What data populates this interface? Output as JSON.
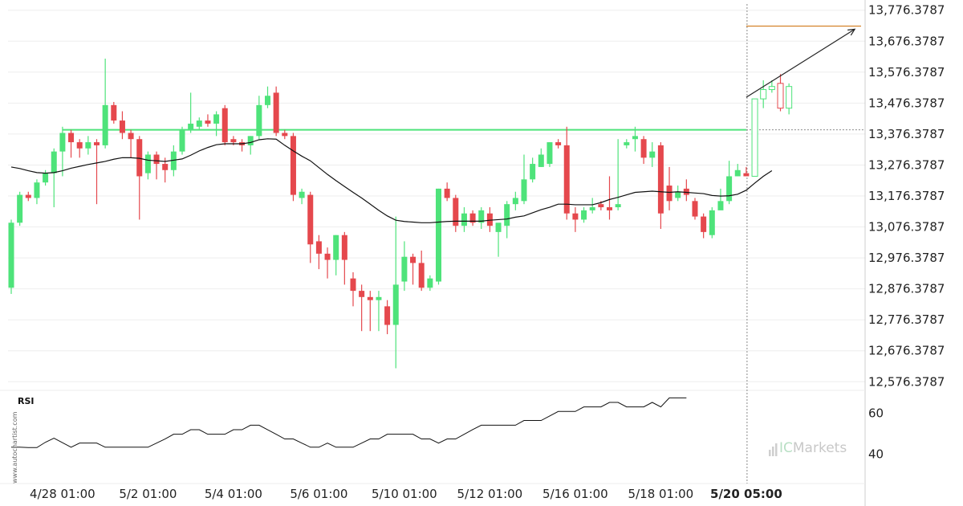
{
  "watermark": "www.autochartist.com",
  "brand": {
    "prefix": "IC",
    "suffix": "Markets"
  },
  "colors": {
    "up": "#4ee37a",
    "down": "#e5484d",
    "sma": "#111111",
    "level": "#4ee37a",
    "target": "#d4822a",
    "grid": "#eeeeee",
    "divider": "#cccccc"
  },
  "chart_data": [
    {
      "type": "candlestick",
      "title": "",
      "y_ticks": [
        "13,776.3787",
        "13,676.3787",
        "13,576.3787",
        "13,476.3787",
        "13,376.3787",
        "13,276.3787",
        "13,176.3787",
        "13,076.3787",
        "12,976.3787",
        "12,876.3787",
        "12,776.3787",
        "12,676.3787",
        "12,576.3787"
      ],
      "ylim": [
        12556.3787,
        13796.3787
      ],
      "x_ticks": [
        {
          "index": 6,
          "label": "4/28 01:00"
        },
        {
          "index": 16,
          "label": "5/2 01:00"
        },
        {
          "index": 26,
          "label": "5/4 01:00"
        },
        {
          "index": 36,
          "label": "5/6 01:00"
        },
        {
          "index": 46,
          "label": "5/10 01:00"
        },
        {
          "index": 56,
          "label": "5/12 01:00"
        },
        {
          "index": 66,
          "label": "5/16 01:00"
        },
        {
          "index": 76,
          "label": "5/18 01:00"
        },
        {
          "index": 86,
          "label": "5/20 05:00",
          "bold": true
        }
      ],
      "breakout_index": 86,
      "candles": [
        [
          12880,
          13100,
          13090,
          12860
        ],
        [
          13090,
          13190,
          13180,
          13080
        ],
        [
          13180,
          13190,
          13170,
          13160
        ],
        [
          13170,
          13230,
          13220,
          13150
        ],
        [
          13220,
          13260,
          13250,
          13210
        ],
        [
          13250,
          13330,
          13320,
          13140
        ],
        [
          13320,
          13400,
          13380,
          13240
        ],
        [
          13380,
          13390,
          13350,
          13300
        ],
        [
          13350,
          13360,
          13330,
          13300
        ],
        [
          13330,
          13370,
          13350,
          13310
        ],
        [
          13350,
          13360,
          13340,
          13150
        ],
        [
          13340,
          13620,
          13470,
          13330
        ],
        [
          13470,
          13480,
          13420,
          13410
        ],
        [
          13420,
          13450,
          13380,
          13360
        ],
        [
          13380,
          13390,
          13360,
          13300
        ],
        [
          13360,
          13370,
          13240,
          13100
        ],
        [
          13250,
          13320,
          13310,
          13230
        ],
        [
          13310,
          13320,
          13280,
          13230
        ],
        [
          13280,
          13300,
          13260,
          13220
        ],
        [
          13260,
          13340,
          13320,
          13240
        ],
        [
          13320,
          13400,
          13390,
          13310
        ],
        [
          13390,
          13510,
          13410,
          13380
        ],
        [
          13400,
          13430,
          13420,
          13390
        ],
        [
          13420,
          13440,
          13410,
          13400
        ],
        [
          13410,
          13450,
          13440,
          13370
        ],
        [
          13460,
          13470,
          13350,
          13340
        ],
        [
          13360,
          13370,
          13350,
          13340
        ],
        [
          13350,
          13360,
          13340,
          13320
        ],
        [
          13340,
          13370,
          13370,
          13310
        ],
        [
          13370,
          13500,
          13470,
          13360
        ],
        [
          13470,
          13530,
          13500,
          13460
        ],
        [
          13510,
          13530,
          13380,
          13370
        ],
        [
          13380,
          13390,
          13370,
          13360
        ],
        [
          13370,
          13380,
          13180,
          13160
        ],
        [
          13170,
          13200,
          13190,
          13150
        ],
        [
          13180,
          13190,
          13020,
          12960
        ],
        [
          13030,
          13050,
          12990,
          12940
        ],
        [
          12990,
          13010,
          12970,
          12910
        ],
        [
          12970,
          13050,
          13050,
          12920
        ],
        [
          13050,
          13060,
          12970,
          12890
        ],
        [
          12910,
          12930,
          12870,
          12820
        ],
        [
          12870,
          12890,
          12850,
          12740
        ],
        [
          12850,
          12870,
          12840,
          12740
        ],
        [
          12840,
          12870,
          12850,
          12740
        ],
        [
          12820,
          12840,
          12760,
          12730
        ],
        [
          12760,
          13110,
          12890,
          12620
        ],
        [
          12900,
          13030,
          12980,
          12870
        ],
        [
          12980,
          12990,
          12960,
          12890
        ],
        [
          12960,
          13000,
          12880,
          12870
        ],
        [
          12880,
          12920,
          12910,
          12870
        ],
        [
          12900,
          13200,
          13200,
          12890
        ],
        [
          13200,
          13220,
          13170,
          13160
        ],
        [
          13170,
          13180,
          13080,
          13060
        ],
        [
          13080,
          13140,
          13120,
          13060
        ],
        [
          13120,
          13130,
          13090,
          13080
        ],
        [
          13090,
          13140,
          13130,
          13070
        ],
        [
          13120,
          13140,
          13080,
          13060
        ],
        [
          13060,
          13080,
          13090,
          12980
        ],
        [
          13080,
          13160,
          13150,
          13040
        ],
        [
          13150,
          13190,
          13170,
          13130
        ],
        [
          13160,
          13310,
          13230,
          13150
        ],
        [
          13230,
          13300,
          13280,
          13220
        ],
        [
          13270,
          13330,
          13310,
          13270
        ],
        [
          13280,
          13350,
          13350,
          13270
        ],
        [
          13350,
          13360,
          13340,
          13330
        ],
        [
          13340,
          13400,
          13120,
          13100
        ],
        [
          13120,
          13140,
          13100,
          13060
        ],
        [
          13100,
          13140,
          13130,
          13090
        ],
        [
          13130,
          13170,
          13140,
          13120
        ],
        [
          13150,
          13160,
          13140,
          13130
        ],
        [
          13140,
          13240,
          13130,
          13100
        ],
        [
          13140,
          13360,
          13150,
          13130
        ],
        [
          13340,
          13360,
          13350,
          13330
        ],
        [
          13360,
          13400,
          13370,
          13320
        ],
        [
          13360,
          13370,
          13300,
          13280
        ],
        [
          13300,
          13350,
          13320,
          13270
        ],
        [
          13340,
          13350,
          13120,
          13070
        ],
        [
          13210,
          13270,
          13160,
          13130
        ],
        [
          13170,
          13210,
          13190,
          13160
        ],
        [
          13200,
          13230,
          13180,
          13160
        ],
        [
          13160,
          13170,
          13110,
          13100
        ],
        [
          13110,
          13120,
          13060,
          13040
        ],
        [
          13050,
          13140,
          13130,
          13040
        ],
        [
          13130,
          13200,
          13160,
          13150
        ],
        [
          13160,
          13290,
          13240,
          13150
        ],
        [
          13240,
          13280,
          13260,
          13240
        ],
        [
          13250,
          13270,
          13240,
          13240
        ],
        [
          13240,
          13490,
          13490,
          13240
        ],
        [
          13490,
          13550,
          13520,
          13460
        ],
        [
          13520,
          13550,
          13530,
          13510
        ],
        [
          13540,
          13570,
          13460,
          13450
        ],
        [
          13460,
          13540,
          13530,
          13440
        ]
      ],
      "sma": [
        13270,
        13265,
        13258,
        13252,
        13250,
        13252,
        13258,
        13266,
        13272,
        13278,
        13283,
        13288,
        13295,
        13300,
        13300,
        13298,
        13292,
        13290,
        13288,
        13292,
        13296,
        13308,
        13322,
        13333,
        13342,
        13345,
        13345,
        13345,
        13349,
        13358,
        13361,
        13360,
        13340,
        13322,
        13305,
        13290,
        13268,
        13246,
        13226,
        13207,
        13188,
        13170,
        13150,
        13130,
        13112,
        13098,
        13094,
        13092,
        13090,
        13090,
        13092,
        13094,
        13095,
        13095,
        13095,
        13095,
        13098,
        13100,
        13102,
        13108,
        13112,
        13122,
        13132,
        13140,
        13150,
        13150,
        13148,
        13148,
        13148,
        13155,
        13165,
        13172,
        13180,
        13188,
        13190,
        13192,
        13190,
        13188,
        13190,
        13188,
        13186,
        13184,
        13178,
        13176,
        13177,
        13182,
        13195,
        13218,
        13240,
        13258
      ],
      "sma_start_index": 0,
      "support_level": 13390,
      "support_start_index": 6,
      "target_level": 13725,
      "projection": {
        "from_index": 86,
        "from_value": 13495,
        "to_index": 94,
        "to_value": 13715
      }
    },
    {
      "type": "line",
      "name": "RSI",
      "y_ticks": [
        60,
        40
      ],
      "ylim": [
        26.5,
        69.5
      ],
      "values": [
        43.4,
        43.4,
        43.2,
        43.2,
        45.8,
        47.8,
        45.6,
        43.4,
        45.4,
        45.4,
        45.4,
        43.4,
        43.4,
        43.4,
        43.4,
        43.4,
        43.4,
        45.4,
        47.4,
        49.7,
        49.7,
        51.9,
        51.9,
        49.7,
        49.7,
        49.7,
        51.9,
        51.9,
        54.1,
        54.1,
        51.9,
        49.7,
        47.4,
        47.4,
        45.4,
        43.4,
        43.4,
        45.4,
        43.4,
        43.4,
        43.4,
        45.4,
        47.4,
        47.4,
        49.7,
        49.7,
        49.7,
        49.7,
        47.4,
        47.4,
        45.4,
        47.4,
        47.4,
        49.7,
        52.0,
        54.1,
        54.1,
        54.1,
        54.1,
        54.1,
        56.4,
        56.4,
        56.4,
        58.6,
        60.8,
        60.8,
        60.8,
        63.0,
        63.0,
        63.0,
        65.2,
        65.2,
        63.0,
        63.0,
        63.0,
        65.2,
        63.0,
        67.4,
        67.4,
        67.4
      ],
      "start_index": 0
    }
  ]
}
